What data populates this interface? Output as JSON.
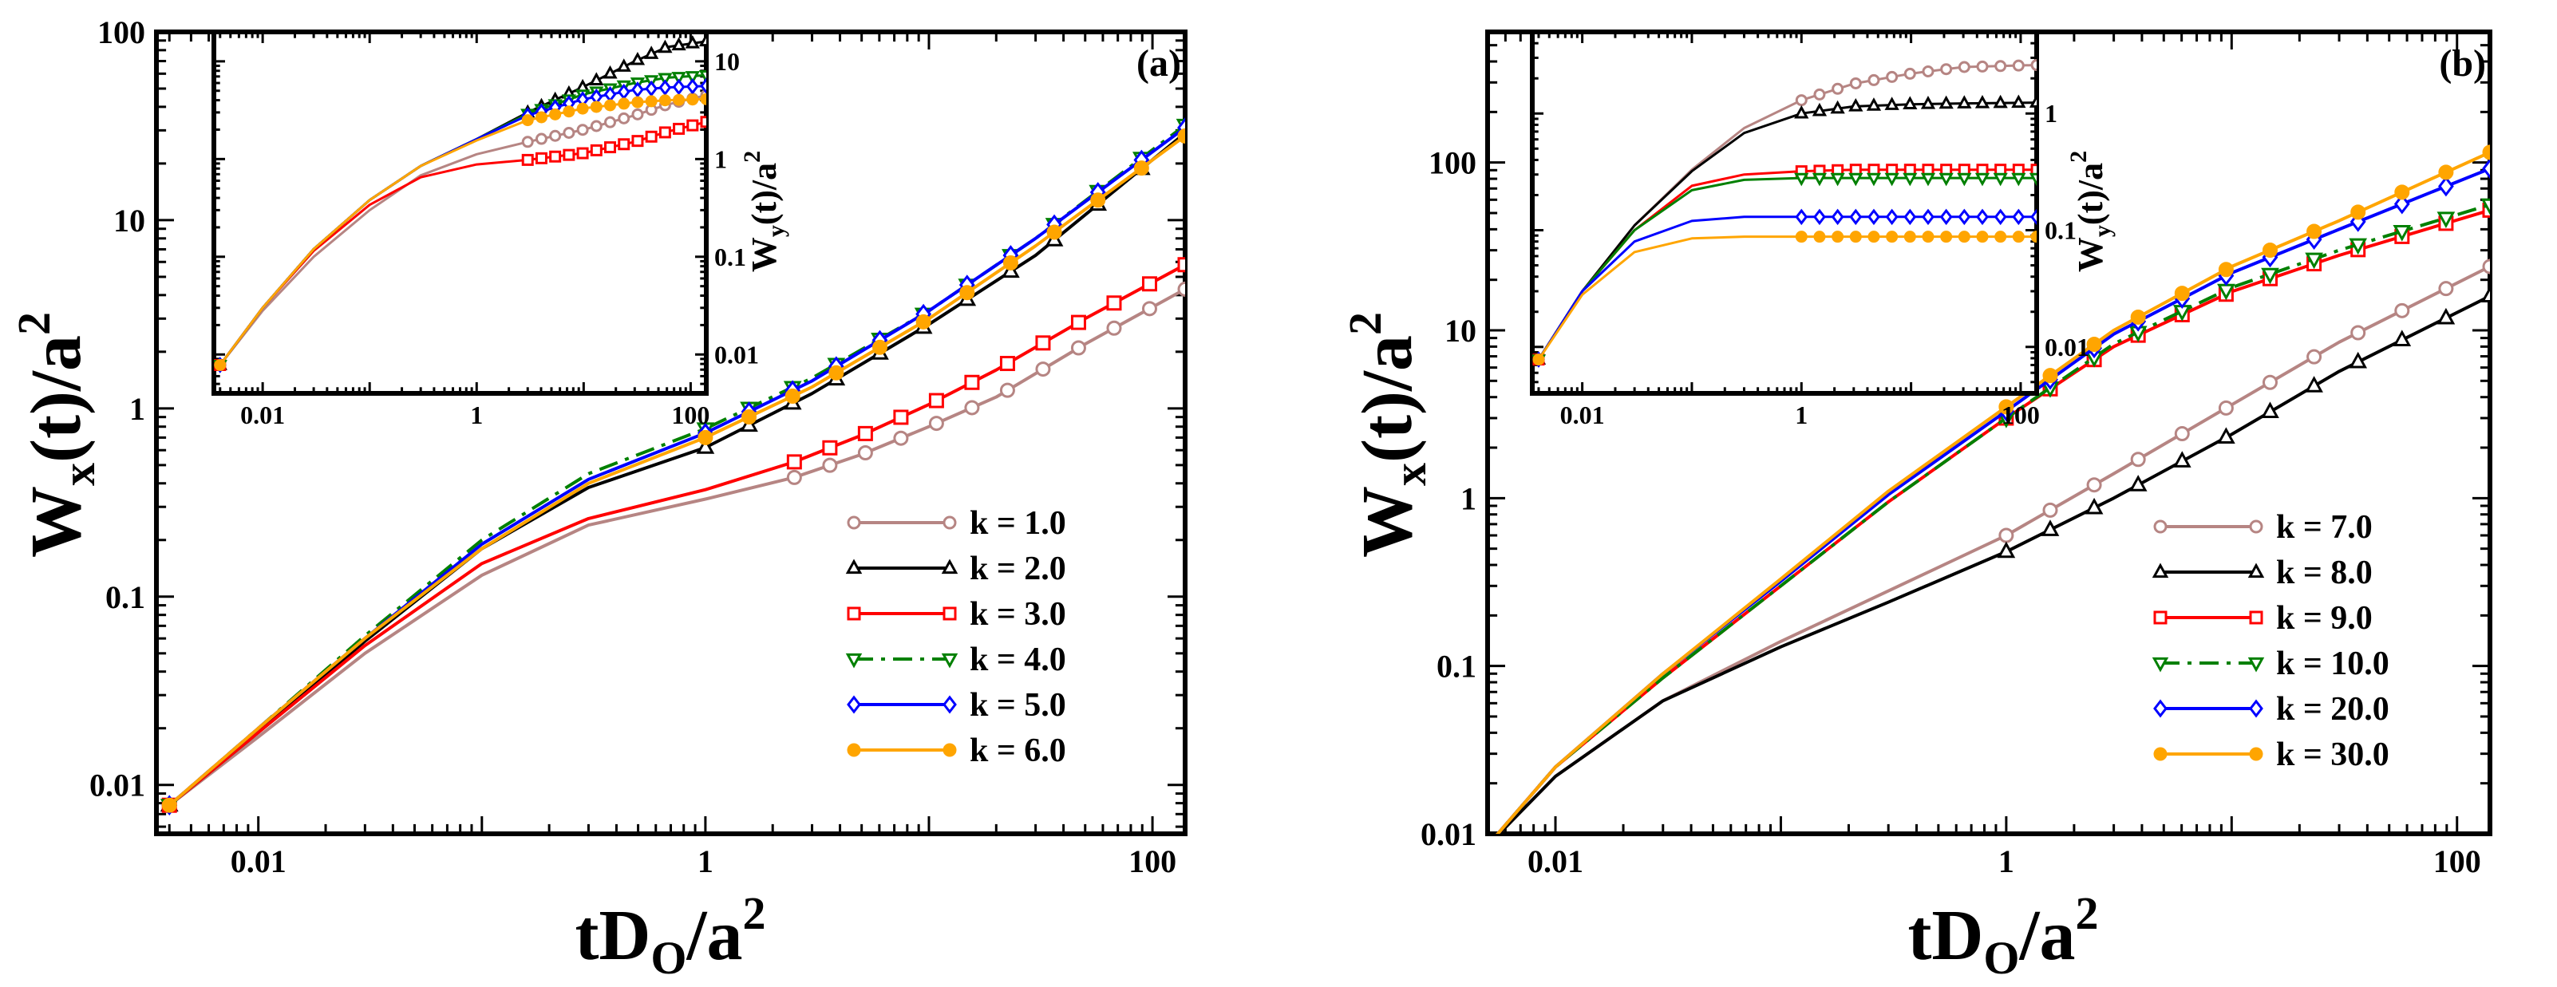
{
  "panels": [
    {
      "label": "(a)",
      "xlabel": {
        "main": "tD",
        "sub": "O",
        "slash": "/a",
        "sup": "2"
      },
      "ylabel": {
        "main": "W",
        "sub": "x",
        "rest": "(t)/a",
        "sup": "2"
      },
      "inset_ylabel": {
        "main": "W",
        "sub": "y",
        "rest": "(t)/a",
        "sup": "2"
      },
      "x_ticks": [
        "0.01",
        "1",
        "100"
      ],
      "y_ticks": [
        "0.01",
        "0.1",
        "1",
        "10",
        "100"
      ],
      "inset_x_ticks": [
        "0.01",
        "1",
        "100"
      ],
      "inset_y_ticks": [
        "0.01",
        "0.1",
        "1",
        "10"
      ]
    },
    {
      "label": "(b)",
      "xlabel": {
        "main": "tD",
        "sub": "O",
        "slash": "/a",
        "sup": "2"
      },
      "ylabel": {
        "main": "W",
        "sub": "x",
        "rest": "(t)/a",
        "sup": "2"
      },
      "inset_ylabel": {
        "main": "W",
        "sub": "y",
        "rest": "(t)/a",
        "sup": "2"
      },
      "x_ticks": [
        "0.01",
        "1",
        "100"
      ],
      "y_ticks": [
        "0.01",
        "0.1",
        "1",
        "10",
        "100"
      ],
      "inset_x_ticks": [
        "0.01",
        "1",
        "100"
      ],
      "inset_y_ticks": [
        "0.01",
        "0.1",
        "1"
      ]
    }
  ],
  "chart_data": [
    {
      "type": "line",
      "panel": "(a)",
      "log_x": true,
      "log_y": true,
      "xlim": [
        0.0035,
        140
      ],
      "ylim": [
        0.0055,
        100
      ],
      "legend_position": "bottom-right",
      "series": [
        {
          "name": "k = 1.0",
          "color": "#b68583",
          "marker": "circle",
          "dash": "solid",
          "x": [
            0.004,
            0.01,
            0.03,
            0.1,
            0.3,
            1,
            2.5,
            5,
            10,
            20,
            50,
            140
          ],
          "y": [
            0.0078,
            0.018,
            0.05,
            0.13,
            0.24,
            0.33,
            0.43,
            0.57,
            0.8,
            1.15,
            2.2,
            4.3
          ]
        },
        {
          "name": "k = 2.0",
          "color": "#000000",
          "marker": "triangle-up",
          "dash": "solid",
          "x": [
            0.004,
            0.01,
            0.03,
            0.1,
            0.3,
            1,
            3,
            10,
            30,
            140
          ],
          "y": [
            0.0078,
            0.019,
            0.058,
            0.18,
            0.38,
            0.62,
            1.2,
            2.8,
            6.5,
            29
          ]
        },
        {
          "name": "k = 3.0",
          "color": "#ff0000",
          "marker": "square",
          "dash": "solid",
          "x": [
            0.004,
            0.01,
            0.03,
            0.1,
            0.3,
            1,
            2.5,
            5,
            10,
            20,
            50,
            140
          ],
          "y": [
            0.0078,
            0.019,
            0.055,
            0.15,
            0.26,
            0.37,
            0.52,
            0.72,
            1.05,
            1.6,
            3.0,
            5.8
          ]
        },
        {
          "name": "k = 4.0",
          "color": "#008000",
          "marker": "triangle-down",
          "dash": "dashdot",
          "x": [
            0.004,
            0.01,
            0.03,
            0.1,
            0.3,
            1,
            3,
            10,
            30,
            140
          ],
          "y": [
            0.0078,
            0.02,
            0.062,
            0.2,
            0.45,
            0.78,
            1.45,
            3.3,
            8.0,
            32
          ]
        },
        {
          "name": "k = 5.0",
          "color": "#0000ff",
          "marker": "diamond",
          "dash": "solid",
          "x": [
            0.004,
            0.01,
            0.03,
            0.1,
            0.3,
            1,
            3,
            10,
            30,
            140
          ],
          "y": [
            0.0078,
            0.02,
            0.06,
            0.19,
            0.42,
            0.74,
            1.4,
            3.3,
            8.0,
            31
          ]
        },
        {
          "name": "k = 6.0",
          "color": "#ffa500",
          "marker": "circle-filled",
          "dash": "solid",
          "x": [
            0.004,
            0.01,
            0.03,
            0.1,
            0.3,
            1,
            3,
            10,
            30,
            140
          ],
          "y": [
            0.0078,
            0.02,
            0.06,
            0.18,
            0.4,
            0.7,
            1.3,
            3.0,
            7.3,
            28
          ]
        }
      ],
      "inset": {
        "log_x": true,
        "log_y": true,
        "xlim": [
          0.0035,
          140
        ],
        "ylim": [
          0.004,
          20
        ],
        "series": [
          {
            "name": "k = 1.0",
            "color": "#b68583",
            "marker": "circle",
            "x": [
              0.004,
              0.01,
              0.03,
              0.1,
              0.3,
              1,
              3,
              10,
              30,
              60,
              140
            ],
            "y": [
              0.0078,
              0.028,
              0.1,
              0.3,
              0.68,
              1.12,
              1.5,
              2.0,
              2.8,
              3.6,
              4.5
            ]
          },
          {
            "name": "k = 2.0",
            "color": "#000000",
            "marker": "triangle-up",
            "x": [
              0.004,
              0.01,
              0.03,
              0.1,
              0.3,
              1,
              3,
              10,
              30,
              60,
              140
            ],
            "y": [
              0.0078,
              0.03,
              0.12,
              0.38,
              0.85,
              1.6,
              3.0,
              5.5,
              10,
              14,
              16
            ]
          },
          {
            "name": "k = 3.0",
            "color": "#ff0000",
            "marker": "square",
            "x": [
              0.004,
              0.01,
              0.03,
              0.1,
              0.3,
              1,
              3,
              10,
              30,
              60,
              140
            ],
            "y": [
              0.0078,
              0.03,
              0.115,
              0.34,
              0.65,
              0.88,
              0.98,
              1.15,
              1.5,
              1.9,
              2.4
            ]
          },
          {
            "name": "k = 4.0",
            "color": "#008000",
            "marker": "triangle-down",
            "x": [
              0.004,
              0.01,
              0.03,
              0.1,
              0.3,
              1,
              3,
              10,
              30,
              60,
              140
            ],
            "y": [
              0.0078,
              0.03,
              0.12,
              0.38,
              0.85,
              1.6,
              2.9,
              4.6,
              6.0,
              6.8,
              7.2
            ]
          },
          {
            "name": "k = 5.0",
            "color": "#0000ff",
            "marker": "diamond",
            "x": [
              0.004,
              0.01,
              0.03,
              0.1,
              0.3,
              1,
              3,
              10,
              30,
              60,
              140
            ],
            "y": [
              0.0078,
              0.03,
              0.12,
              0.38,
              0.85,
              1.6,
              2.8,
              4.1,
              5.1,
              5.4,
              5.6
            ]
          },
          {
            "name": "k = 6.0",
            "color": "#ffa500",
            "marker": "circle-filled",
            "x": [
              0.004,
              0.01,
              0.03,
              0.1,
              0.3,
              1,
              3,
              10,
              30,
              60,
              140
            ],
            "y": [
              0.0078,
              0.03,
              0.12,
              0.38,
              0.85,
              1.55,
              2.5,
              3.3,
              3.8,
              4.0,
              4.1
            ]
          }
        ]
      }
    },
    {
      "type": "line",
      "panel": "(b)",
      "log_x": true,
      "log_y": true,
      "xlim": [
        0.005,
        140
      ],
      "ylim": [
        0.01,
        600
      ],
      "legend_position": "bottom-right",
      "series": [
        {
          "name": "k = 7.0",
          "color": "#b68583",
          "marker": "circle",
          "dash": "solid",
          "x": [
            0.005,
            0.01,
            0.03,
            0.1,
            0.3,
            1,
            3,
            10,
            30,
            140
          ],
          "y": [
            0.0085,
            0.022,
            0.062,
            0.14,
            0.28,
            0.6,
            1.4,
            3.6,
            8.5,
            24
          ]
        },
        {
          "name": "k = 8.0",
          "color": "#000000",
          "marker": "triangle-up",
          "dash": "solid",
          "x": [
            0.005,
            0.01,
            0.03,
            0.1,
            0.3,
            1,
            3,
            10,
            30,
            140
          ],
          "y": [
            0.0085,
            0.022,
            0.062,
            0.13,
            0.24,
            0.48,
            1.0,
            2.4,
            5.7,
            16
          ]
        },
        {
          "name": "k = 9.0",
          "color": "#ff0000",
          "marker": "square",
          "dash": "solid",
          "x": [
            0.005,
            0.01,
            0.03,
            0.1,
            0.3,
            1,
            3,
            10,
            30,
            140
          ],
          "y": [
            0.0085,
            0.025,
            0.085,
            0.3,
            0.95,
            3.0,
            8.0,
            17,
            28,
            52
          ]
        },
        {
          "name": "k = 10.0",
          "color": "#008000",
          "marker": "triangle-down",
          "dash": "dashdot",
          "x": [
            0.005,
            0.01,
            0.03,
            0.1,
            0.3,
            1,
            3,
            10,
            30,
            140
          ],
          "y": [
            0.0085,
            0.025,
            0.085,
            0.3,
            0.95,
            3.0,
            8.3,
            18,
            30,
            56
          ]
        },
        {
          "name": "k = 20.0",
          "color": "#0000ff",
          "marker": "diamond",
          "dash": "solid",
          "x": [
            0.005,
            0.01,
            0.03,
            0.1,
            0.3,
            1,
            3,
            10,
            30,
            140
          ],
          "y": [
            0.0085,
            0.025,
            0.09,
            0.32,
            1.05,
            3.3,
            9.5,
            22,
            40,
            92
          ]
        },
        {
          "name": "k = 30.0",
          "color": "#ffa500",
          "marker": "circle-filled",
          "dash": "solid",
          "x": [
            0.005,
            0.01,
            0.03,
            0.1,
            0.3,
            1,
            3,
            10,
            30,
            140
          ],
          "y": [
            0.0085,
            0.025,
            0.09,
            0.33,
            1.1,
            3.5,
            10,
            24,
            45,
            115
          ]
        }
      ],
      "inset": {
        "log_x": true,
        "log_y": true,
        "xlim": [
          0.0035,
          140
        ],
        "ylim": [
          0.004,
          5
        ],
        "series": [
          {
            "name": "k = 7.0",
            "color": "#b68583",
            "marker": "circle",
            "x": [
              0.004,
              0.01,
              0.03,
              0.1,
              0.3,
              1,
              3,
              10,
              30,
              140
            ],
            "y": [
              0.0078,
              0.03,
              0.11,
              0.33,
              0.75,
              1.3,
              1.8,
              2.2,
              2.5,
              2.6
            ]
          },
          {
            "name": "k = 8.0",
            "color": "#000000",
            "marker": "triangle-up",
            "x": [
              0.004,
              0.01,
              0.03,
              0.1,
              0.3,
              1,
              3,
              10,
              30,
              140
            ],
            "y": [
              0.0078,
              0.03,
              0.11,
              0.32,
              0.68,
              1.0,
              1.15,
              1.2,
              1.22,
              1.24
            ]
          },
          {
            "name": "k = 9.0",
            "color": "#ff0000",
            "marker": "square",
            "x": [
              0.004,
              0.01,
              0.03,
              0.1,
              0.3,
              1,
              3,
              10,
              30,
              140
            ],
            "y": [
              0.0078,
              0.03,
              0.1,
              0.24,
              0.3,
              0.32,
              0.33,
              0.33,
              0.33,
              0.33
            ]
          },
          {
            "name": "k = 10.0",
            "color": "#008000",
            "marker": "triangle-down",
            "x": [
              0.004,
              0.01,
              0.03,
              0.1,
              0.3,
              1,
              3,
              10,
              30,
              140
            ],
            "y": [
              0.0078,
              0.03,
              0.1,
              0.22,
              0.27,
              0.28,
              0.28,
              0.28,
              0.28,
              0.28
            ]
          },
          {
            "name": "k = 20.0",
            "color": "#0000ff",
            "marker": "diamond",
            "x": [
              0.004,
              0.01,
              0.03,
              0.1,
              0.3,
              1,
              3,
              10,
              30,
              140
            ],
            "y": [
              0.0078,
              0.03,
              0.08,
              0.12,
              0.13,
              0.13,
              0.13,
              0.13,
              0.13,
              0.13
            ]
          },
          {
            "name": "k = 30.0",
            "color": "#ffa500",
            "marker": "circle-filled",
            "x": [
              0.004,
              0.01,
              0.03,
              0.1,
              0.3,
              1,
              3,
              10,
              30,
              140
            ],
            "y": [
              0.0078,
              0.028,
              0.065,
              0.085,
              0.088,
              0.088,
              0.088,
              0.088,
              0.088,
              0.088
            ]
          }
        ]
      }
    }
  ]
}
